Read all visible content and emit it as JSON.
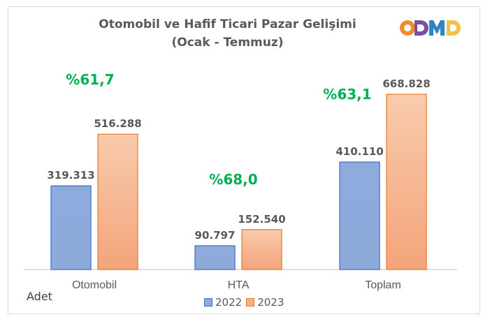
{
  "chart_data": {
    "type": "bar",
    "title": "Otomobil ve Hafif Ticari Pazar Gelişimi",
    "subtitle": "(Ocak - Temmuz)",
    "ylabel": "Adet",
    "categories": [
      "Otomobil",
      "HTA",
      "Toplam"
    ],
    "series": [
      {
        "name": "2022",
        "values": [
          319313,
          90797,
          410110
        ],
        "labels": [
          "319.313",
          "90.797",
          "410.110"
        ],
        "color": "#8eaadb",
        "border": "#4472c4"
      },
      {
        "name": "2023",
        "values": [
          516288,
          152540,
          668828
        ],
        "labels": [
          "516.288",
          "152.540",
          "668.828"
        ],
        "color": "#f4b183",
        "border": "#ed7d31"
      }
    ],
    "growth_labels": [
      "%61,7",
      "%68,0",
      "%63,1"
    ],
    "growth_color": "#00b050",
    "ylim": [
      0,
      680000
    ],
    "legend_position": "bottom"
  },
  "logo": {
    "text": "ODMD",
    "letters": [
      "O",
      "D",
      "M",
      "D"
    ],
    "colors": [
      "#f28c28",
      "#7a4fa1",
      "#2e86c1",
      "#e84c3d"
    ]
  }
}
